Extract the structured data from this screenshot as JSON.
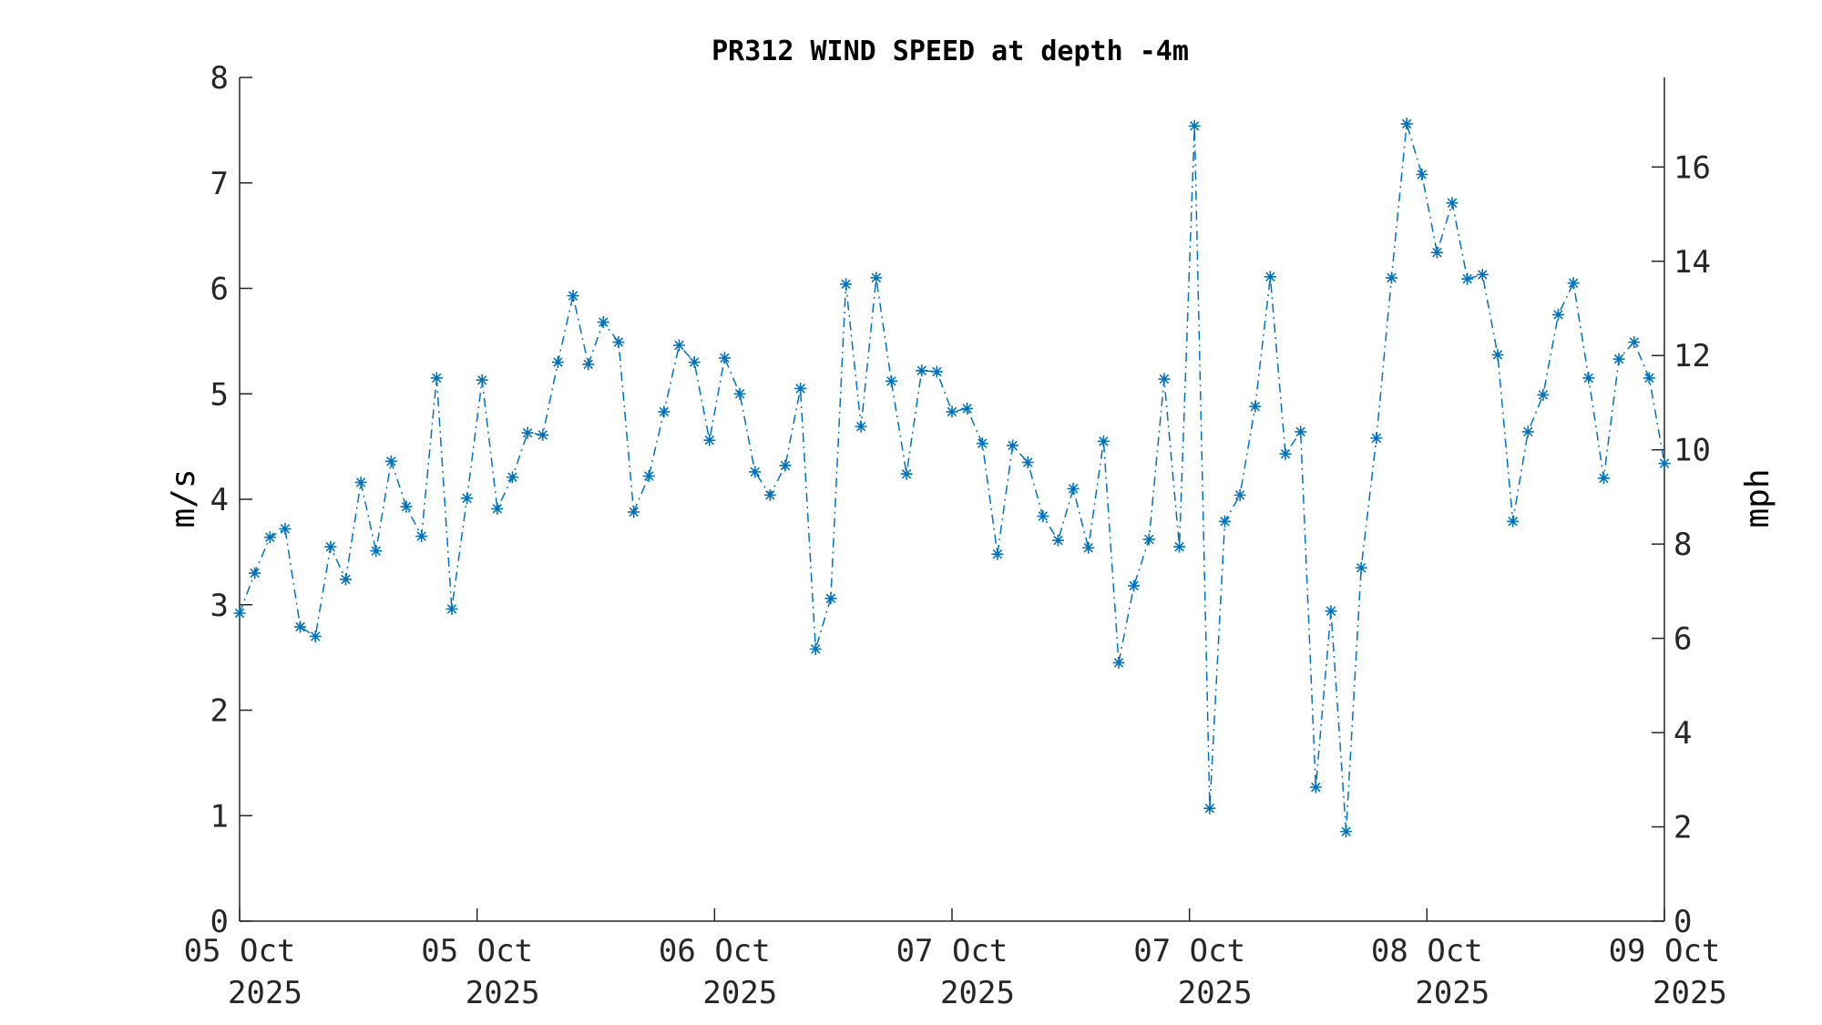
{
  "chart_data": {
    "type": "line",
    "title": "PR312 WIND SPEED at depth -4m",
    "ylabel": "m/s",
    "ylabel_right": "mph",
    "ylim": [
      0,
      8
    ],
    "ylim_right": [
      0,
      17.9
    ],
    "yticks": [
      "0",
      "1",
      "2",
      "3",
      "4",
      "5",
      "6",
      "7",
      "8"
    ],
    "yticks_right": [
      "0",
      "2",
      "4",
      "6",
      "8",
      "10",
      "12",
      "14",
      "16"
    ],
    "xticks": [
      {
        "line1": "05 Oct",
        "line2": "2025"
      },
      {
        "line1": "05 Oct",
        "line2": "2025"
      },
      {
        "line1": "06 Oct",
        "line2": "2025"
      },
      {
        "line1": "07 Oct",
        "line2": "2025"
      },
      {
        "line1": "07 Oct",
        "line2": "2025"
      },
      {
        "line1": "08 Oct",
        "line2": "2025"
      },
      {
        "line1": "09 Oct",
        "line2": "2025"
      }
    ],
    "marker": "asterisk",
    "line_style": "dash-dot",
    "series_color": "#0072bd",
    "values": [
      2.92,
      3.3,
      3.64,
      3.72,
      2.79,
      2.7,
      3.55,
      3.24,
      4.16,
      3.51,
      4.36,
      3.93,
      3.65,
      5.15,
      2.96,
      4.01,
      5.13,
      3.91,
      4.21,
      4.63,
      4.61,
      5.3,
      5.93,
      5.28,
      5.68,
      5.49,
      3.88,
      4.22,
      4.83,
      5.46,
      5.3,
      4.56,
      5.34,
      5.0,
      4.26,
      4.04,
      4.32,
      5.05,
      2.58,
      3.06,
      6.04,
      4.69,
      6.1,
      5.12,
      4.24,
      5.22,
      5.21,
      4.83,
      4.86,
      4.53,
      3.48,
      4.51,
      4.35,
      3.84,
      3.61,
      4.1,
      3.54,
      4.55,
      2.45,
      3.18,
      3.62,
      5.14,
      3.55,
      7.54,
      1.07,
      3.79,
      4.04,
      4.88,
      6.11,
      4.43,
      4.64,
      1.27,
      2.94,
      0.85,
      3.35,
      4.58,
      6.1,
      7.56,
      7.08,
      6.34,
      6.81,
      6.09,
      6.13,
      5.37,
      3.79,
      4.64,
      4.99,
      5.75,
      6.05,
      5.15,
      4.2,
      5.33,
      5.49,
      5.15,
      4.34
    ]
  }
}
